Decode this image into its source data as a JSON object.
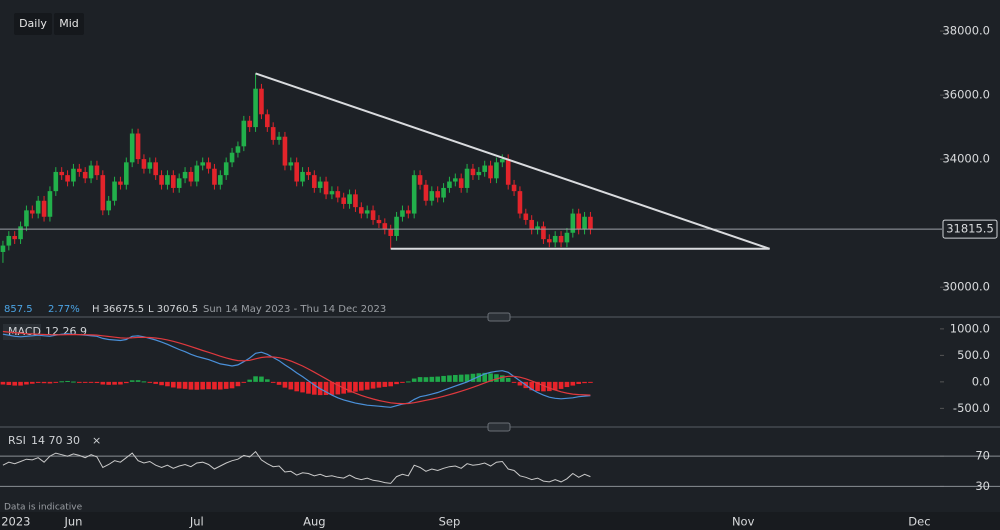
{
  "toolbar": {
    "buttons": [
      "Daily",
      "Mid"
    ]
  },
  "footer": "Data is indicative",
  "chart_data": [
    {
      "type": "candlestick",
      "xlim": [
        0,
        160
      ],
      "xticks": [
        {
          "value": 2.7,
          "label": "2023"
        },
        {
          "value": 12.5,
          "label": "Jun"
        },
        {
          "value": 33.5,
          "label": "Jul"
        },
        {
          "value": 53.5,
          "label": "Aug"
        },
        {
          "value": 76.5,
          "label": "Sep"
        },
        {
          "value": 126.5,
          "label": "Nov"
        },
        {
          "value": 156.5,
          "label": "Dec"
        }
      ],
      "ylim": [
        29600,
        38970
      ],
      "yticks": [
        {
          "value": 38000,
          "label": "38000.0"
        },
        {
          "value": 36000,
          "label": "36000.0"
        },
        {
          "value": 34000,
          "label": "34000.0"
        },
        {
          "value": 30000,
          "label": "30000.0"
        }
      ],
      "up_color": "#22b04b",
      "down_color": "#e3242b",
      "last_price": 31815.5,
      "info": [
        "857.5",
        "2.77%",
        "H 36675.5",
        "L 30760.5",
        "Sun 14 May 2023 - Thu 14 Dec 2023"
      ],
      "trendlines": [
        {
          "x": [
            43.5,
            131
          ],
          "y": [
            36675.5,
            31200
          ]
        },
        {
          "x": [
            66.5,
            131
          ],
          "y": [
            31200,
            31200
          ]
        }
      ],
      "open": [
        31100,
        31300,
        31600,
        31500,
        31900,
        32400,
        32300,
        32700,
        32200,
        33000,
        33600,
        33500,
        33300,
        33700,
        33600,
        33400,
        33800,
        33500,
        32400,
        32700,
        33300,
        33200,
        33900,
        34800,
        34000,
        33700,
        33900,
        33500,
        33200,
        33500,
        33100,
        33400,
        33600,
        33300,
        33800,
        33900,
        33700,
        33200,
        33500,
        33900,
        34200,
        34400,
        35200,
        35000,
        36200,
        35400,
        35000,
        34600,
        34700,
        33800,
        33900,
        33300,
        33600,
        33500,
        33100,
        33300,
        32900,
        33000,
        32800,
        32600,
        32900,
        32500,
        32300,
        32400,
        32100,
        32000,
        31800,
        31600,
        32200,
        32400,
        32300,
        33500,
        33200,
        32700,
        33000,
        32800,
        33100,
        33300,
        33400,
        33100,
        33700,
        33500,
        33600,
        33800,
        33400,
        33900,
        34000,
        33200,
        33000,
        32300,
        32100,
        31800,
        31900,
        31500,
        31400,
        31600,
        31400,
        31700,
        32300,
        31800,
        32200
      ],
      "high": [
        31450,
        31750,
        31750,
        32050,
        32550,
        32550,
        32850,
        32850,
        33150,
        33750,
        33750,
        33650,
        33850,
        33850,
        33750,
        33950,
        33950,
        33650,
        32850,
        33450,
        33450,
        34050,
        34950,
        34950,
        34150,
        34050,
        34050,
        33650,
        33650,
        33650,
        33550,
        33750,
        33750,
        33950,
        34050,
        34050,
        33850,
        33650,
        34050,
        34350,
        34550,
        35350,
        35350,
        36675.5,
        36350,
        35550,
        35150,
        34850,
        34850,
        34050,
        34050,
        33750,
        33750,
        33650,
        33450,
        33450,
        33150,
        33150,
        32950,
        33050,
        33050,
        32650,
        32550,
        32550,
        32250,
        32150,
        31950,
        32350,
        32550,
        32550,
        33650,
        33650,
        33350,
        33150,
        33150,
        33250,
        33450,
        33550,
        33550,
        33850,
        33850,
        33750,
        33950,
        33950,
        34050,
        34150,
        34150,
        33350,
        33150,
        32450,
        32250,
        32050,
        32050,
        31650,
        31750,
        31750,
        31850,
        32450,
        32450,
        32350,
        32350
      ],
      "low": [
        30760.5,
        31150,
        31350,
        31350,
        31750,
        32150,
        32150,
        32050,
        32050,
        32850,
        33350,
        33150,
        33150,
        33450,
        33250,
        33250,
        33350,
        32250,
        32250,
        32550,
        33050,
        33050,
        33750,
        33850,
        33550,
        33550,
        33350,
        33050,
        33050,
        32950,
        32950,
        33250,
        33150,
        33150,
        33650,
        33550,
        33050,
        33050,
        33350,
        33750,
        34050,
        34250,
        34850,
        34850,
        35250,
        34850,
        34450,
        34450,
        33650,
        33650,
        33150,
        33150,
        33350,
        32950,
        32950,
        32750,
        32750,
        32650,
        32450,
        32450,
        32350,
        32150,
        32150,
        31950,
        31850,
        31650,
        31200,
        31450,
        32050,
        32150,
        32150,
        33050,
        32550,
        32550,
        32650,
        32650,
        32950,
        33150,
        32950,
        32950,
        33350,
        33350,
        33450,
        33250,
        33250,
        33750,
        33050,
        32850,
        32150,
        31950,
        31650,
        31650,
        31350,
        31250,
        31250,
        31250,
        31250,
        31550,
        31650,
        31650,
        31650
      ],
      "close": [
        31300,
        31600,
        31500,
        31900,
        32400,
        32300,
        32700,
        32200,
        33000,
        33600,
        33500,
        33300,
        33700,
        33600,
        33400,
        33800,
        33500,
        32400,
        32700,
        33300,
        33200,
        33900,
        34800,
        34000,
        33700,
        33900,
        33500,
        33200,
        33500,
        33100,
        33400,
        33600,
        33300,
        33800,
        33900,
        33700,
        33200,
        33500,
        33900,
        34200,
        34400,
        35200,
        35000,
        36200,
        35400,
        35000,
        34600,
        34700,
        33800,
        33900,
        33300,
        33600,
        33500,
        33100,
        33300,
        32900,
        33000,
        32800,
        32600,
        32900,
        32500,
        32300,
        32400,
        32100,
        32000,
        31800,
        31600,
        32200,
        32400,
        32300,
        33500,
        33200,
        32700,
        33000,
        32800,
        33100,
        33300,
        33400,
        33100,
        33700,
        33500,
        33600,
        33800,
        33400,
        33900,
        34000,
        33200,
        33000,
        32300,
        32100,
        31800,
        31900,
        31500,
        31400,
        31600,
        31400,
        31700,
        32300,
        31800,
        32200,
        31815.5
      ]
    },
    {
      "type": "macd",
      "title": "MACD",
      "params": "12 26 9",
      "xlim": [
        0,
        160
      ],
      "ylim": [
        -833,
        1130
      ],
      "yticks": [
        {
          "value": 1000,
          "label": "1000.0"
        },
        {
          "value": 500,
          "label": "500.0"
        },
        {
          "value": 0,
          "label": "0.0"
        },
        {
          "value": -500,
          "label": "-500.0"
        }
      ],
      "series": [
        {
          "color": "#4a90d9",
          "values": [
            900,
            880,
            860,
            850,
            860,
            870,
            880,
            870,
            860,
            880,
            900,
            910,
            900,
            890,
            880,
            870,
            860,
            820,
            800,
            790,
            780,
            800,
            860,
            870,
            850,
            820,
            790,
            750,
            710,
            660,
            610,
            570,
            520,
            480,
            450,
            420,
            380,
            340,
            320,
            300,
            320,
            380,
            450,
            540,
            560,
            520,
            460,
            400,
            320,
            250,
            170,
            100,
            20,
            -60,
            -130,
            -190,
            -250,
            -300,
            -340,
            -370,
            -400,
            -420,
            -440,
            -450,
            -460,
            -470,
            -480,
            -450,
            -420,
            -400,
            -330,
            -280,
            -260,
            -230,
            -200,
            -160,
            -120,
            -80,
            -40,
            0,
            50,
            100,
            150,
            180,
            200,
            210,
            180,
            100,
            20,
            -60,
            -140,
            -200,
            -250,
            -290,
            -310,
            -320,
            -310,
            -300,
            -280,
            -270,
            -260
          ]
        },
        {
          "color": "#e0393e",
          "values": [
            950,
            940,
            930,
            920,
            910,
            905,
            900,
            895,
            890,
            888,
            889,
            893,
            894,
            893,
            891,
            887,
            882,
            870,
            856,
            843,
            830,
            824,
            831,
            839,
            841,
            837,
            828,
            813,
            793,
            766,
            735,
            702,
            666,
            629,
            593,
            558,
            522,
            485,
            452,
            422,
            402,
            398,
            408,
            435,
            460,
            472,
            470,
            456,
            429,
            393,
            348,
            299,
            243,
            182,
            120,
            58,
            -4,
            -63,
            -118,
            -168,
            -214,
            -255,
            -292,
            -324,
            -351,
            -375,
            -396,
            -407,
            -410,
            -408,
            -393,
            -370,
            -348,
            -325,
            -300,
            -272,
            -242,
            -210,
            -176,
            -141,
            -103,
            -62,
            -20,
            20,
            56,
            87,
            106,
            105,
            88,
            58,
            18,
            -26,
            -71,
            -115,
            -154,
            -187,
            -212,
            -230,
            -240,
            -246,
            -249
          ]
        }
      ],
      "histogram": {
        "up_color": "#1fa84a",
        "down_color": "#e8232a",
        "values": [
          -50,
          -60,
          -70,
          -70,
          -50,
          -35,
          -20,
          -25,
          -30,
          -8,
          11,
          17,
          6,
          -3,
          -11,
          -17,
          -22,
          -50,
          -56,
          -53,
          -50,
          -24,
          29,
          31,
          9,
          -17,
          -38,
          -63,
          -83,
          -106,
          -125,
          -132,
          -146,
          -149,
          -143,
          -138,
          -142,
          -145,
          -132,
          -122,
          -82,
          -18,
          42,
          105,
          100,
          48,
          -10,
          -56,
          -109,
          -143,
          -178,
          -199,
          -223,
          -242,
          -250,
          -248,
          -246,
          -237,
          -222,
          -202,
          -186,
          -165,
          -148,
          -126,
          -109,
          -95,
          -84,
          -43,
          -10,
          8,
          63,
          90,
          88,
          95,
          100,
          112,
          122,
          130,
          136,
          141,
          153,
          162,
          170,
          160,
          144,
          123,
          74,
          -5,
          -68,
          -118,
          -158,
          -174,
          -179,
          -175,
          -156,
          -133,
          -98,
          -70,
          -40,
          -24,
          -11
        ]
      }
    },
    {
      "type": "line",
      "title": "RSI",
      "params": "14 70 30",
      "xlim": [
        0,
        160
      ],
      "ylim": [
        12,
        98
      ],
      "yticks": [
        70,
        30
      ],
      "grid": true,
      "color": "#c9c9c9",
      "values": [
        58,
        62,
        60,
        63,
        66,
        65,
        68,
        62,
        70,
        74,
        72,
        70,
        73,
        71,
        68,
        72,
        69,
        55,
        59,
        64,
        62,
        68,
        74,
        64,
        61,
        63,
        58,
        55,
        58,
        54,
        57,
        59,
        56,
        61,
        62,
        59,
        53,
        57,
        61,
        64,
        66,
        71,
        69,
        76,
        65,
        60,
        56,
        57,
        49,
        50,
        45,
        48,
        47,
        44,
        46,
        43,
        44,
        42,
        41,
        45,
        41,
        39,
        41,
        38,
        37,
        35,
        34,
        43,
        46,
        44,
        58,
        55,
        50,
        53,
        51,
        54,
        56,
        57,
        54,
        60,
        58,
        59,
        61,
        57,
        62,
        63,
        53,
        51,
        44,
        42,
        39,
        41,
        37,
        36,
        39,
        36,
        40,
        47,
        42,
        46,
        43
      ]
    }
  ]
}
